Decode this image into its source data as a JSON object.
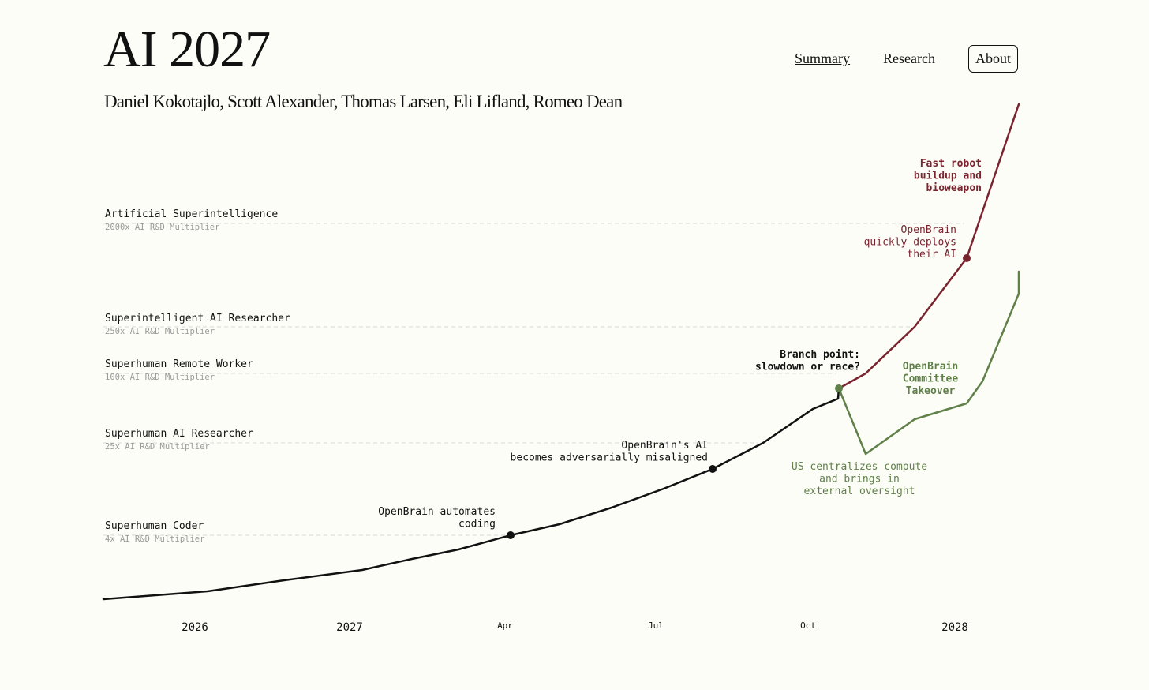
{
  "site": {
    "title": "AI 2027",
    "authors": "Daniel Kokotajlo, Scott Alexander, Thomas Larsen, Eli Lifland, Romeo Dean"
  },
  "nav": {
    "items": [
      "Summary",
      "Research",
      "About"
    ],
    "active": "Summary",
    "boxed": "About"
  },
  "colors": {
    "background": "#fdfdf7",
    "main_line": "#111111",
    "race": "#7a2430",
    "slowdown": "#5f8048",
    "milestone_grid": "#dcd6d6",
    "subtitle_text": "#9a9a9a"
  },
  "chart_data": {
    "type": "line",
    "x_tick_labels": [
      "2026",
      "2027",
      "Apr",
      "Jul",
      "Oct",
      "2028"
    ],
    "milestones": [
      {
        "name": "Superhuman Coder",
        "multiplier": "4x AI R&D Multiplier",
        "value": 4
      },
      {
        "name": "Superhuman AI Researcher",
        "multiplier": "25x AI R&D Multiplier",
        "value": 25
      },
      {
        "name": "Superhuman Remote Worker",
        "multiplier": "100x AI R&D Multiplier",
        "value": 100
      },
      {
        "name": "Superintelligent AI Researcher",
        "multiplier": "250x AI R&D Multiplier",
        "value": 250
      },
      {
        "name": "Artificial Superintelligence",
        "multiplier": "2000x AI R&D Multiplier",
        "value": 2000
      }
    ],
    "series": [
      {
        "key": "main",
        "color": "#111111",
        "points": [
          [
            "2025-06",
            1.2
          ],
          [
            "2026-01",
            1.4
          ],
          [
            "2026-07",
            2.0
          ],
          [
            "2027-01",
            2.7
          ],
          [
            "2027-02",
            3.1
          ],
          [
            "2027-03",
            3.5
          ],
          [
            "2027-04",
            4.0
          ],
          [
            "2027-05",
            4.8
          ],
          [
            "2027-06",
            6.5
          ],
          [
            "2027-07",
            9.5
          ],
          [
            "2027-08",
            15
          ],
          [
            "2027-09",
            25
          ],
          [
            "2027-10",
            40
          ],
          [
            "2027-11",
            60
          ],
          [
            "2027-12",
            85
          ]
        ]
      },
      {
        "key": "race",
        "color": "#7a2430",
        "points": [
          [
            "2027-12",
            85
          ],
          [
            "2028-01",
            110
          ],
          [
            "2028-02",
            250
          ],
          [
            "2028-03",
            1000
          ],
          [
            "2028-04",
            15000
          ]
        ]
      },
      {
        "key": "slowdown",
        "color": "#5f8048",
        "points": [
          [
            "2027-12",
            85
          ],
          [
            "2028-01",
            22
          ],
          [
            "2028-02",
            38
          ],
          [
            "2028-03",
            52
          ],
          [
            "2028-03-10",
            75
          ],
          [
            "2028-04",
            220
          ],
          [
            "2028-04-15",
            420
          ]
        ]
      }
    ],
    "annotations": [
      {
        "key": "automates",
        "text": [
          "OpenBrain automates",
          "coding"
        ],
        "color": "#111111",
        "bold": false
      },
      {
        "key": "misaligned",
        "text": [
          "OpenBrain's AI",
          "becomes adversarially misaligned"
        ],
        "color": "#111111",
        "bold": false
      },
      {
        "key": "branch",
        "text": [
          "Branch point:",
          "slowdown or race?"
        ],
        "color": "#111111",
        "bold": true
      },
      {
        "key": "centralizes",
        "text": [
          "US centralizes compute",
          "and brings in",
          "external oversight"
        ],
        "color": "#5f8048",
        "bold": false
      },
      {
        "key": "committee",
        "text": [
          "OpenBrain",
          "Committee",
          "Takeover"
        ],
        "color": "#5f8048",
        "bold": true
      },
      {
        "key": "deploys",
        "text": [
          "OpenBrain",
          "quickly deploys",
          "their AI"
        ],
        "color": "#7a2430",
        "bold": false
      },
      {
        "key": "robot",
        "text": [
          "Fast robot",
          "buildup and",
          "bioweapon"
        ],
        "color": "#7a2430",
        "bold": true
      }
    ]
  }
}
